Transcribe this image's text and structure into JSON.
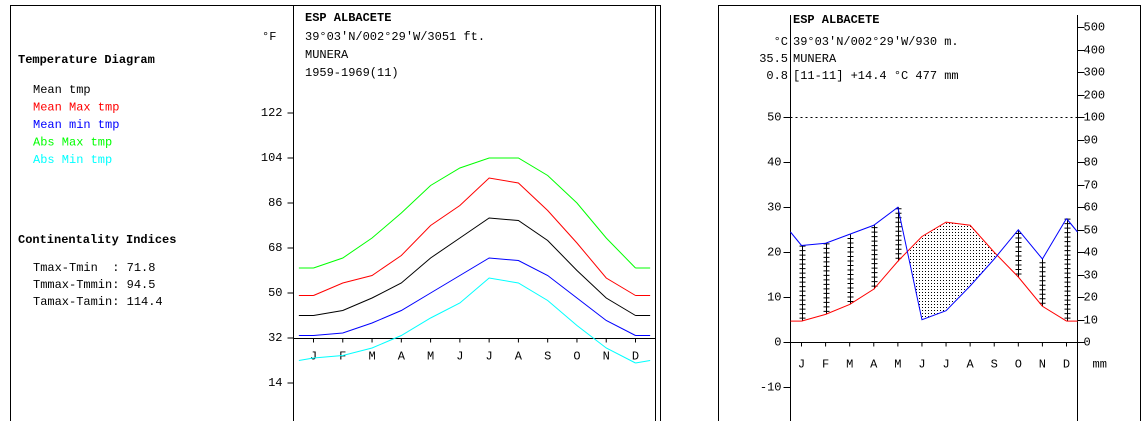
{
  "left_panel": {
    "title": "Temperature Diagram",
    "indices_title": "Continentality Indices",
    "indices": [
      "Tmax-Tmin  : 71.8",
      "Tmmax-Tmmin: 94.5",
      "Tamax-Tamin: 114.4"
    ]
  },
  "chart_data": [
    {
      "type": "line",
      "title": "ESP ALBACETE",
      "ylabel": "°F",
      "info": [
        "39°03'N/002°29'W/3051 ft.",
        "MUNERA",
        "1959-1969(11)"
      ],
      "categories": [
        "J",
        "F",
        "M",
        "A",
        "M",
        "J",
        "J",
        "A",
        "S",
        "O",
        "N",
        "D"
      ],
      "series": [
        {
          "name": "Mean tmp",
          "color": "#000000",
          "values": [
            41,
            43,
            48,
            54,
            64,
            72,
            80,
            79,
            71,
            59,
            48,
            41
          ]
        },
        {
          "name": "Mean Max tmp",
          "color": "#ff0000",
          "values": [
            49,
            54,
            57,
            65,
            77,
            85,
            96,
            94,
            83,
            70,
            56,
            49
          ]
        },
        {
          "name": "Mean min tmp",
          "color": "#0000ff",
          "values": [
            33,
            34,
            38,
            43,
            50,
            57,
            64,
            63,
            57,
            48,
            39,
            33
          ]
        },
        {
          "name": "Abs Max tmp",
          "color": "#00ff00",
          "values": [
            60,
            64,
            72,
            82,
            93,
            100,
            104,
            104,
            97,
            86,
            72,
            60
          ]
        },
        {
          "name": "Abs Min tmp",
          "color": "#00ffff",
          "values": [
            24,
            25,
            28,
            33,
            40,
            46,
            56,
            54,
            47,
            37,
            28,
            22
          ]
        }
      ],
      "ylim": [
        0,
        160
      ],
      "yticks": [
        14,
        32,
        50,
        68,
        86,
        104,
        122
      ],
      "xaxis_at": 32
    },
    {
      "type": "walter_lieth",
      "title": "ESP ALBACETE",
      "ylabel": "°C",
      "extremes": [
        35.5,
        0.8
      ],
      "info": [
        "39°03'N/002°29'W/930 m.",
        "MUNERA",
        "[11-11] +14.4 °C 477 mm"
      ],
      "categories": [
        "J",
        "F",
        "M",
        "A",
        "M",
        "J",
        "J",
        "A",
        "S",
        "O",
        "N",
        "D"
      ],
      "series": [
        {
          "color": "#ff0000",
          "values": [
            4.7,
            6.2,
            8.4,
            11.8,
            18,
            23.5,
            26.7,
            26,
            20,
            14.5,
            8,
            4.7
          ]
        },
        {
          "color": "#0000ff",
          "axis": "y2",
          "values": [
            43,
            44,
            48,
            52,
            60,
            10,
            14,
            25,
            37,
            50,
            37,
            55
          ]
        }
      ],
      "ylim": [
        -17.5,
        71.5
      ],
      "yticks": [
        -10,
        0,
        10,
        20,
        30,
        40,
        50
      ],
      "y2lim": [
        -35,
        143
      ],
      "y2ticks": [
        0,
        10,
        20,
        30,
        40,
        50,
        60,
        70,
        80,
        90,
        100,
        200,
        300,
        400,
        500
      ],
      "y2label": "mm",
      "y2_break": 100,
      "y2_break_factor": 10
    }
  ]
}
